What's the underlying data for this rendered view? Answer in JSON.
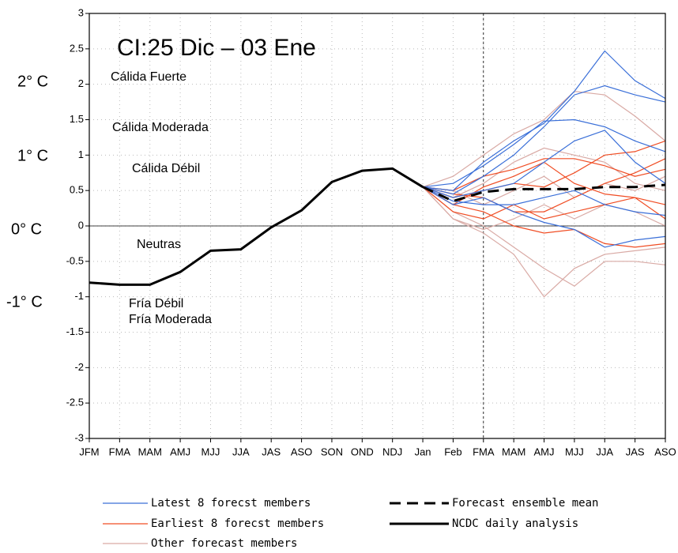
{
  "chart_data": {
    "type": "line",
    "categories": [
      "JFM",
      "FMA",
      "MAM",
      "AMJ",
      "MJJ",
      "JJA",
      "JAS",
      "ASO",
      "SON",
      "OND",
      "NDJ",
      "Jan",
      "Feb",
      "FMA",
      "MAM",
      "AMJ",
      "MJJ",
      "JJA",
      "JAS",
      "ASO"
    ],
    "ylim": [
      -3,
      3
    ],
    "yticks": [
      3,
      2.5,
      2,
      1.5,
      1,
      0.5,
      0,
      -0.5,
      -1,
      -1.5,
      -2,
      -2.5,
      -3
    ],
    "grid": true,
    "annotations": [
      "CI:25 Dic – 03 Ene",
      "Cálida Fuerte",
      "Cálida Moderada",
      "Cálida Débil",
      "Neutras",
      "Fría Débil",
      "Fría Moderada",
      "2°  C",
      "1°  C",
      "0°  C",
      "-1°  C"
    ],
    "member_groups": [
      {
        "name": "Other forecast members",
        "color": "#d9aaa5",
        "members": [
          [
            null,
            null,
            null,
            null,
            null,
            null,
            null,
            null,
            null,
            null,
            null,
            0.55,
            0.1,
            -0.1,
            -0.4,
            -1.0,
            -0.6,
            -0.4,
            -0.35,
            -0.3
          ],
          [
            null,
            null,
            null,
            null,
            null,
            null,
            null,
            null,
            null,
            null,
            null,
            0.55,
            0.7,
            1.0,
            1.3,
            1.5,
            1.9,
            1.85,
            1.55,
            1.2
          ],
          [
            null,
            null,
            null,
            null,
            null,
            null,
            null,
            null,
            null,
            null,
            null,
            0.55,
            0.2,
            0.0,
            -0.3,
            -0.6,
            -0.85,
            -0.5,
            -0.5,
            -0.55
          ],
          [
            null,
            null,
            null,
            null,
            null,
            null,
            null,
            null,
            null,
            null,
            null,
            0.55,
            0.4,
            0.6,
            0.9,
            1.1,
            1.0,
            0.9,
            0.6,
            0.5
          ],
          [
            null,
            null,
            null,
            null,
            null,
            null,
            null,
            null,
            null,
            null,
            null,
            0.55,
            0.1,
            -0.05,
            0.1,
            0.3,
            0.1,
            0.3,
            0.2,
            0.0
          ],
          [
            null,
            null,
            null,
            null,
            null,
            null,
            null,
            null,
            null,
            null,
            null,
            0.55,
            0.5,
            0.3,
            0.5,
            0.7,
            0.4,
            0.6,
            0.5,
            0.7
          ]
        ]
      },
      {
        "name": "Earliest 8 forecst members",
        "color": "#f04d24",
        "members": [
          [
            null,
            null,
            null,
            null,
            null,
            null,
            null,
            null,
            null,
            null,
            null,
            0.55,
            0.3,
            0.2,
            0.0,
            -0.1,
            -0.05,
            -0.25,
            -0.3,
            -0.25
          ],
          [
            null,
            null,
            null,
            null,
            null,
            null,
            null,
            null,
            null,
            null,
            null,
            0.55,
            0.5,
            0.7,
            0.8,
            0.95,
            0.95,
            0.85,
            0.7,
            0.8
          ],
          [
            null,
            null,
            null,
            null,
            null,
            null,
            null,
            null,
            null,
            null,
            null,
            0.55,
            0.4,
            0.5,
            0.6,
            0.55,
            0.75,
            1.0,
            1.05,
            1.2
          ],
          [
            null,
            null,
            null,
            null,
            null,
            null,
            null,
            null,
            null,
            null,
            null,
            0.55,
            0.2,
            0.1,
            0.3,
            0.1,
            0.2,
            0.3,
            0.4,
            0.1
          ],
          [
            null,
            null,
            null,
            null,
            null,
            null,
            null,
            null,
            null,
            null,
            null,
            0.55,
            0.45,
            0.4,
            0.2,
            0.2,
            0.4,
            0.6,
            0.75,
            0.95
          ],
          [
            null,
            null,
            null,
            null,
            null,
            null,
            null,
            null,
            null,
            null,
            null,
            0.55,
            0.3,
            0.55,
            0.7,
            0.9,
            0.6,
            0.45,
            0.4,
            0.3
          ]
        ]
      },
      {
        "name": "Latest 8 forecst members",
        "color": "#3a6fd8",
        "members": [
          [
            null,
            null,
            null,
            null,
            null,
            null,
            null,
            null,
            null,
            null,
            null,
            0.55,
            0.5,
            0.9,
            1.2,
            1.45,
            1.9,
            2.47,
            2.05,
            1.8
          ],
          [
            null,
            null,
            null,
            null,
            null,
            null,
            null,
            null,
            null,
            null,
            null,
            0.55,
            0.6,
            0.85,
            1.15,
            1.48,
            1.5,
            1.4,
            1.2,
            1.05
          ],
          [
            null,
            null,
            null,
            null,
            null,
            null,
            null,
            null,
            null,
            null,
            null,
            0.55,
            0.45,
            0.7,
            1.0,
            1.4,
            1.85,
            1.98,
            1.85,
            1.75
          ],
          [
            null,
            null,
            null,
            null,
            null,
            null,
            null,
            null,
            null,
            null,
            null,
            0.55,
            0.3,
            0.4,
            0.2,
            0.05,
            -0.05,
            -0.3,
            -0.2,
            -0.15
          ],
          [
            null,
            null,
            null,
            null,
            null,
            null,
            null,
            null,
            null,
            null,
            null,
            0.55,
            0.4,
            0.5,
            0.6,
            0.9,
            1.2,
            1.35,
            0.9,
            0.6
          ],
          [
            null,
            null,
            null,
            null,
            null,
            null,
            null,
            null,
            null,
            null,
            null,
            0.55,
            0.35,
            0.3,
            0.3,
            0.4,
            0.5,
            0.3,
            0.2,
            0.15
          ]
        ]
      }
    ],
    "series": [
      {
        "name": "Forecast ensemble mean",
        "color": "#000000",
        "dashed": true,
        "values": [
          null,
          null,
          null,
          null,
          null,
          null,
          null,
          null,
          null,
          null,
          null,
          0.55,
          0.35,
          0.48,
          0.52,
          0.52,
          0.52,
          0.55,
          0.55,
          0.58
        ]
      },
      {
        "name": "NCDC daily analysis",
        "color": "#000000",
        "dashed": false,
        "values": [
          -0.8,
          -0.83,
          -0.83,
          -0.65,
          -0.35,
          -0.33,
          -0.02,
          0.22,
          0.62,
          0.78,
          0.81,
          0.55,
          null,
          null,
          null,
          null,
          null,
          null,
          null,
          null
        ]
      }
    ]
  }
}
